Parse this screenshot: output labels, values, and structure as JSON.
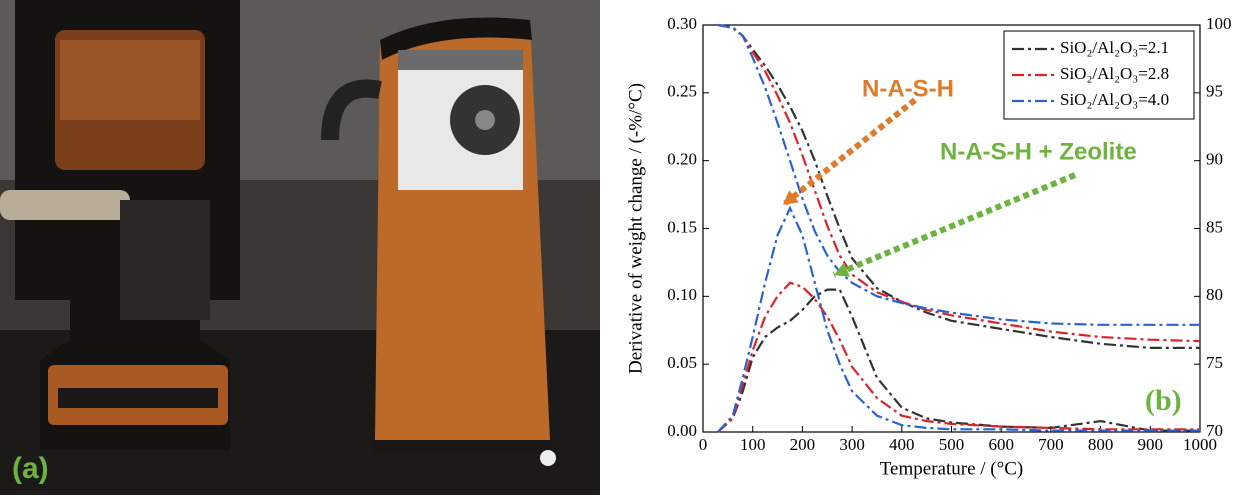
{
  "photo": {
    "label": "(a)"
  },
  "chart_data": {
    "type": "line",
    "x_label": "Temperature / (°C)",
    "y_label": "Derivative of weight change / (-%/°C)",
    "annotations": [
      "N-A-S-H",
      "N-A-S-H + Zeolite",
      "(b)"
    ],
    "x": [
      30,
      60,
      80,
      100,
      125,
      150,
      175,
      200,
      225,
      250,
      275,
      300,
      350,
      400,
      450,
      500,
      600,
      700,
      800,
      900,
      1000
    ],
    "series": [
      {
        "name": "SiO₂/Al₂O₃=2.1",
        "color": "#333333",
        "values": [
          0,
          0.01,
          0.03,
          0.055,
          0.07,
          0.077,
          0.082,
          0.09,
          0.1,
          0.105,
          0.105,
          0.085,
          0.04,
          0.018,
          0.01,
          0.007,
          0.004,
          0.003,
          0.008,
          0.001,
          0.001
        ]
      },
      {
        "name": "SiO₂/Al₂O₃=2.8",
        "color": "#e0202a",
        "values": [
          0,
          0.01,
          0.035,
          0.06,
          0.085,
          0.1,
          0.11,
          0.107,
          0.098,
          0.085,
          0.068,
          0.048,
          0.025,
          0.012,
          0.008,
          0.006,
          0.004,
          0.003,
          0.002,
          0.002,
          0.002
        ]
      },
      {
        "name": "SiO₂/Al₂O₃=4.0",
        "color": "#2a62d6",
        "values": [
          0,
          0.012,
          0.04,
          0.07,
          0.11,
          0.145,
          0.165,
          0.145,
          0.11,
          0.075,
          0.05,
          0.03,
          0.012,
          0.005,
          0.003,
          0.002,
          0.002,
          0.001,
          0.001,
          0.001,
          0.001
        ]
      },
      {
        "color": "#333333",
        "axis": "y2",
        "values": [
          100,
          99.8,
          99.2,
          98.2,
          97,
          95.6,
          94,
          92.2,
          90,
          87.4,
          85,
          82.8,
          80.6,
          79.6,
          78.8,
          78.2,
          77.6,
          77,
          76.5,
          76.2,
          76.2
        ]
      },
      {
        "color": "#e0202a",
        "axis": "y2",
        "values": [
          100,
          99.8,
          99.2,
          98,
          96.6,
          94.8,
          92.8,
          90.4,
          87.8,
          85.2,
          83,
          81.6,
          80.3,
          79.6,
          79,
          78.6,
          78,
          77.4,
          77,
          76.8,
          76.7
        ]
      },
      {
        "color": "#2a62d6",
        "axis": "y2",
        "values": [
          100,
          99.8,
          99.2,
          97.6,
          95.4,
          92.8,
          90,
          87.2,
          84.8,
          83,
          81.8,
          81,
          80,
          79.5,
          79.1,
          78.8,
          78.3,
          78,
          77.9,
          77.9,
          77.9
        ]
      }
    ],
    "xlim": [
      0,
      1000
    ],
    "xticks": [
      0,
      100,
      200,
      300,
      400,
      500,
      600,
      700,
      800,
      900,
      1000
    ],
    "ylim": [
      0,
      0.3
    ],
    "yticks": [
      {
        "value": 0,
        "label": "0.00"
      },
      {
        "value": 0.05,
        "label": "0.05"
      },
      {
        "value": 0.1,
        "label": "0.10"
      },
      {
        "value": 0.15,
        "label": "0.15"
      },
      {
        "value": 0.2,
        "label": "0.20"
      },
      {
        "value": 0.25,
        "label": "0.25"
      },
      {
        "value": 0.3,
        "label": "0.30"
      }
    ],
    "y2lim": [
      70,
      100
    ],
    "y2ticks": [
      70,
      75,
      80,
      85,
      90,
      95,
      100
    ],
    "legend": "top-right"
  }
}
